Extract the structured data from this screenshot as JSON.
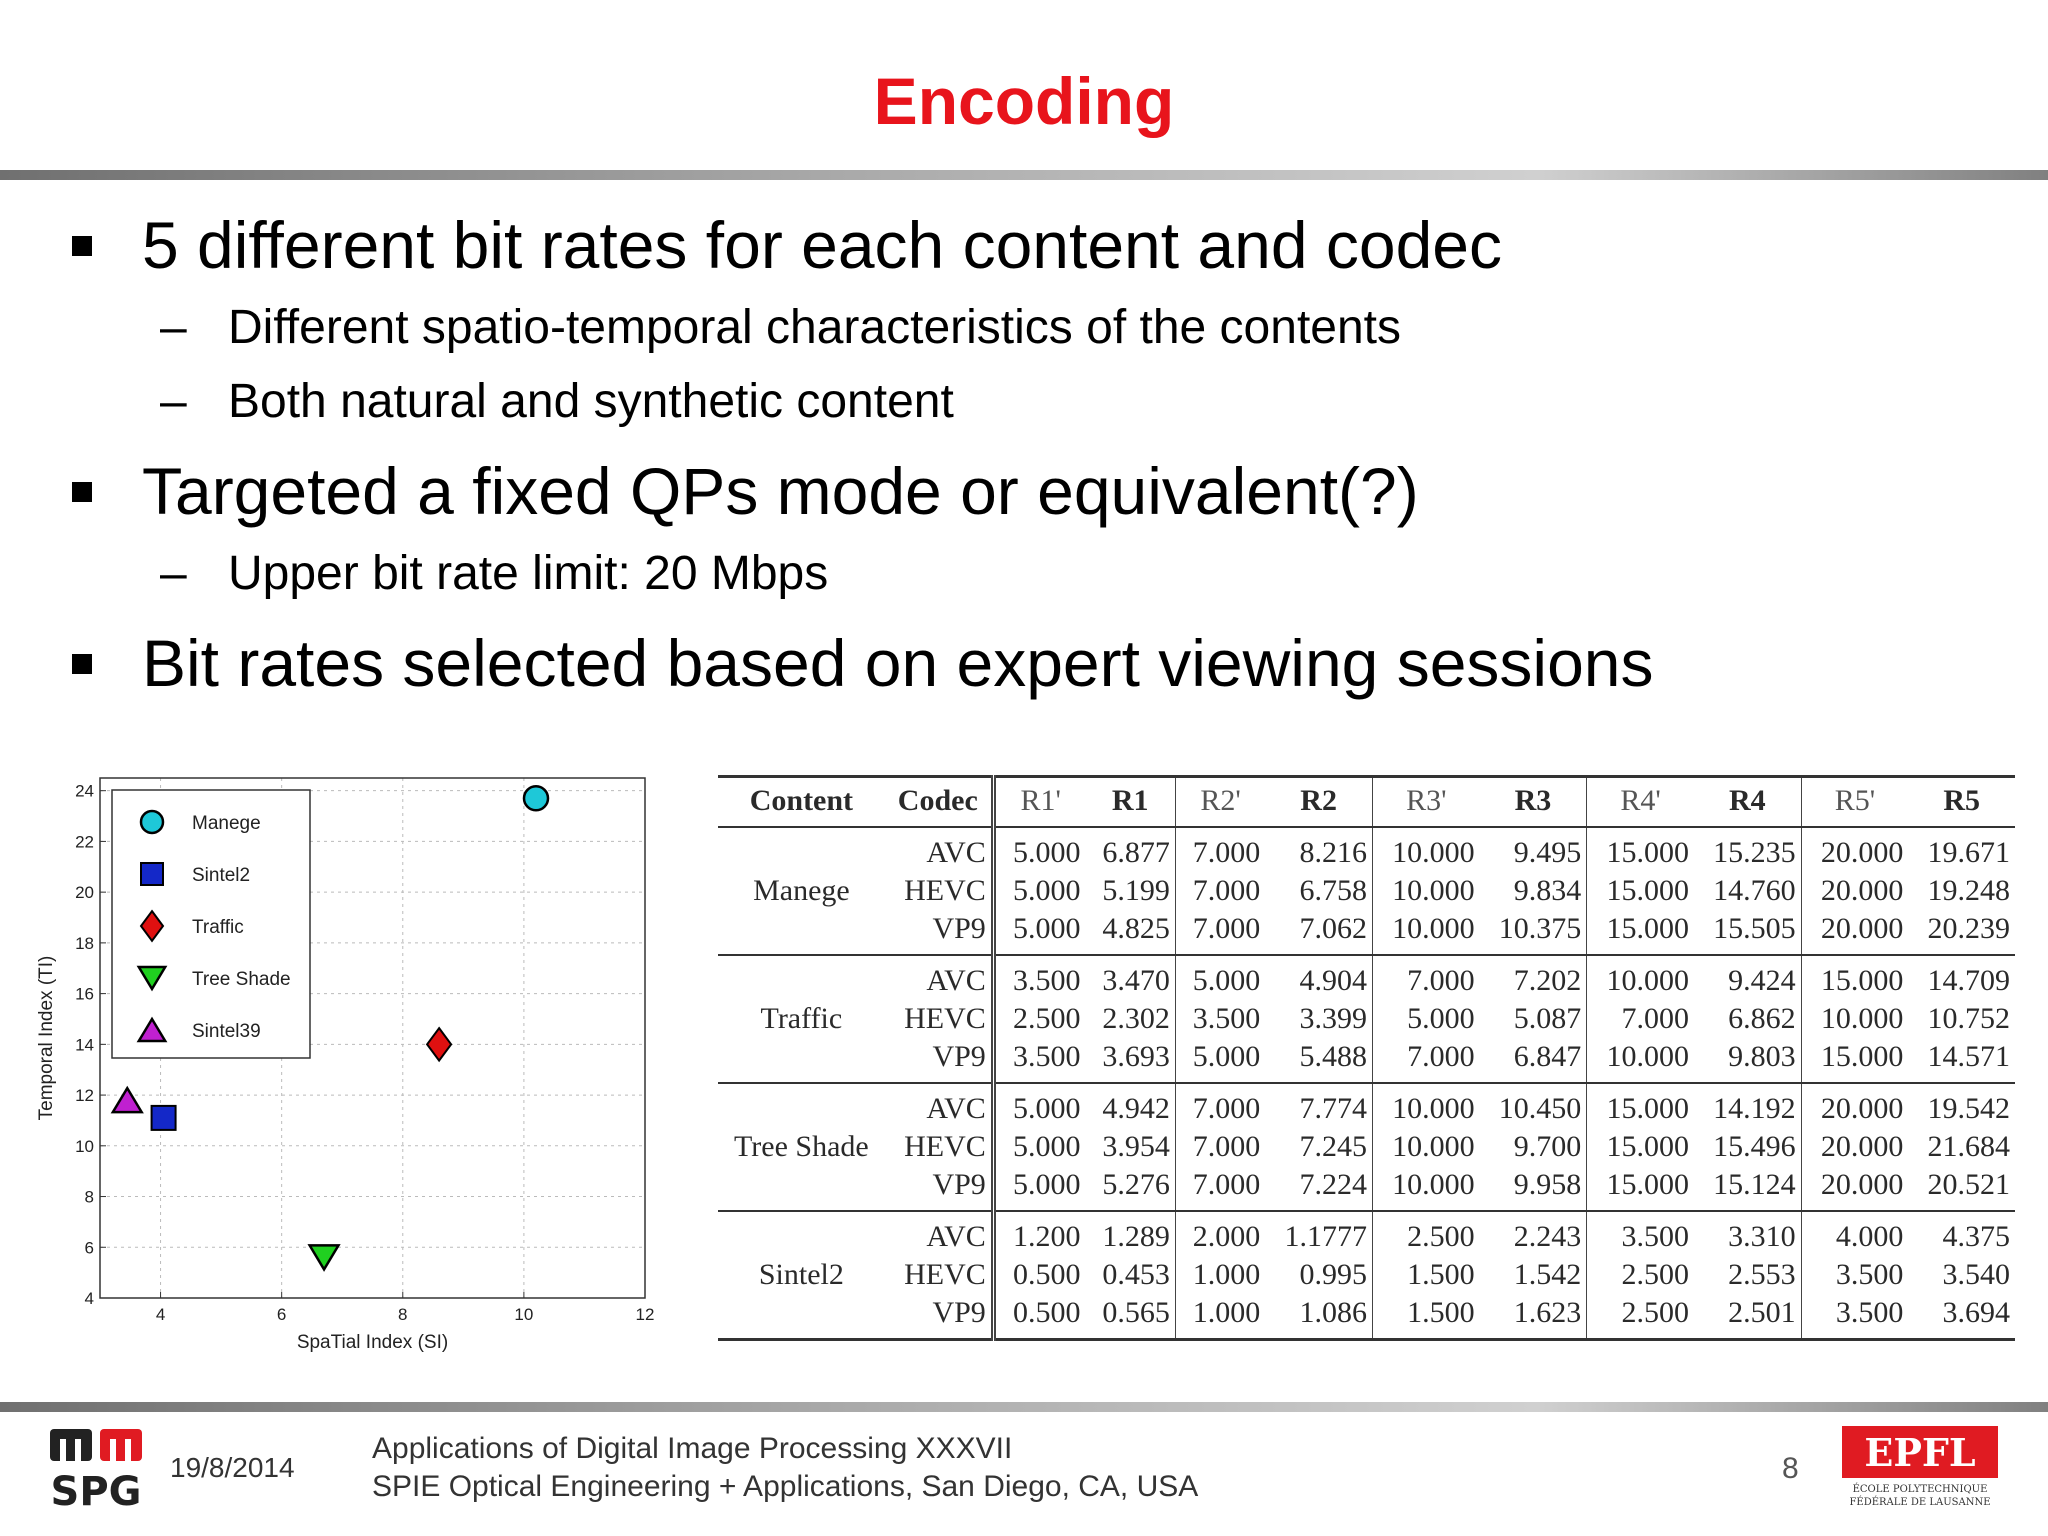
{
  "title": "Encoding",
  "bullets": [
    {
      "text": "5 different bit rates for each content and codec",
      "subs": [
        "Different spatio-temporal characteristics of the contents",
        "Both natural and synthetic content"
      ]
    },
    {
      "text": "Targeted a fixed QPs mode or equivalent(?)",
      "subs": [
        "Upper bit rate limit: 20 Mbps"
      ]
    },
    {
      "text": "Bit rates selected based on expert viewing sessions",
      "subs": []
    }
  ],
  "sub_marker": "–",
  "chart_data": {
    "type": "scatter",
    "xlabel": "SpaTial Index (SI)",
    "ylabel": "Temporal Index (TI)",
    "xlim": [
      3,
      12
    ],
    "ylim": [
      4,
      24.5
    ],
    "xticks": [
      4,
      6,
      8,
      10,
      12
    ],
    "yticks": [
      4,
      6,
      8,
      10,
      12,
      14,
      16,
      18,
      20,
      22,
      24
    ],
    "grid": true,
    "legend_position": "top-left",
    "series": [
      {
        "name": "Manege",
        "marker": "circle",
        "color": "#1ec8d8",
        "x": 10.2,
        "y": 23.7
      },
      {
        "name": "Sintel2",
        "marker": "square",
        "color": "#1428c8",
        "x": 4.05,
        "y": 11.1
      },
      {
        "name": "Traffic",
        "marker": "diamond",
        "color": "#e01010",
        "x": 8.6,
        "y": 14.0
      },
      {
        "name": "Tree Shade",
        "marker": "triangle-down",
        "color": "#20d020",
        "x": 6.7,
        "y": 5.6
      },
      {
        "name": "Sintel39",
        "marker": "triangle-up",
        "color": "#c020d0",
        "x": 3.45,
        "y": 11.8
      }
    ]
  },
  "table": {
    "headers": [
      "Content",
      "Codec",
      "R1'",
      "R1",
      "R2'",
      "R2",
      "R3'",
      "R3",
      "R4'",
      "R4",
      "R5'",
      "R5"
    ],
    "groups": [
      {
        "content": "Manege",
        "rows": [
          [
            "AVC",
            "5.000",
            "6.877",
            "7.000",
            "8.216",
            "10.000",
            "9.495",
            "15.000",
            "15.235",
            "20.000",
            "19.671"
          ],
          [
            "HEVC",
            "5.000",
            "5.199",
            "7.000",
            "6.758",
            "10.000",
            "9.834",
            "15.000",
            "14.760",
            "20.000",
            "19.248"
          ],
          [
            "VP9",
            "5.000",
            "4.825",
            "7.000",
            "7.062",
            "10.000",
            "10.375",
            "15.000",
            "15.505",
            "20.000",
            "20.239"
          ]
        ]
      },
      {
        "content": "Traffic",
        "rows": [
          [
            "AVC",
            "3.500",
            "3.470",
            "5.000",
            "4.904",
            "7.000",
            "7.202",
            "10.000",
            "9.424",
            "15.000",
            "14.709"
          ],
          [
            "HEVC",
            "2.500",
            "2.302",
            "3.500",
            "3.399",
            "5.000",
            "5.087",
            "7.000",
            "6.862",
            "10.000",
            "10.752"
          ],
          [
            "VP9",
            "3.500",
            "3.693",
            "5.000",
            "5.488",
            "7.000",
            "6.847",
            "10.000",
            "9.803",
            "15.000",
            "14.571"
          ]
        ]
      },
      {
        "content": "Tree Shade",
        "rows": [
          [
            "AVC",
            "5.000",
            "4.942",
            "7.000",
            "7.774",
            "10.000",
            "10.450",
            "15.000",
            "14.192",
            "20.000",
            "19.542"
          ],
          [
            "HEVC",
            "5.000",
            "3.954",
            "7.000",
            "7.245",
            "10.000",
            "9.700",
            "15.000",
            "15.496",
            "20.000",
            "21.684"
          ],
          [
            "VP9",
            "5.000",
            "5.276",
            "7.000",
            "7.224",
            "10.000",
            "9.958",
            "15.000",
            "15.124",
            "20.000",
            "20.521"
          ]
        ]
      },
      {
        "content": "Sintel2",
        "rows": [
          [
            "AVC",
            "1.200",
            "1.289",
            "2.000",
            "1.1777",
            "2.500",
            "2.243",
            "3.500",
            "3.310",
            "4.000",
            "4.375"
          ],
          [
            "HEVC",
            "0.500",
            "0.453",
            "1.000",
            "0.995",
            "1.500",
            "1.542",
            "2.500",
            "2.553",
            "3.500",
            "3.540"
          ],
          [
            "VP9",
            "0.500",
            "0.565",
            "1.000",
            "1.086",
            "1.500",
            "1.623",
            "2.500",
            "2.501",
            "3.500",
            "3.694"
          ]
        ]
      }
    ]
  },
  "footer": {
    "date": "19/8/2014",
    "line1": "Applications of Digital Image Processing XXXVII",
    "line2": "SPIE Optical Engineering + Applications, San Diego, CA, USA",
    "page_number": "8",
    "logo_left": "MMSPG",
    "logo_right": "EPFL",
    "logo_right_sub1": "ÉCOLE POLYTECHNIQUE",
    "logo_right_sub2": "FÉDÉRALE DE LAUSANNE"
  },
  "colors": {
    "title": "#e8141c",
    "epfl_red": "#e01b22"
  }
}
